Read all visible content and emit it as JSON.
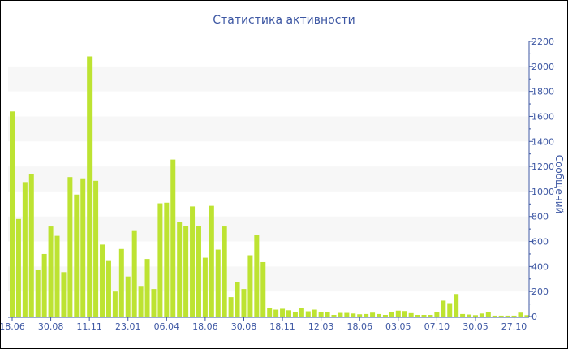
{
  "chart_data": {
    "type": "bar",
    "title": "Статистика активности",
    "ylabel": "Сообщений",
    "xlabel": "",
    "ylim": [
      0,
      2200
    ],
    "yticks": [
      0,
      200,
      400,
      600,
      800,
      1000,
      1200,
      1400,
      1600,
      1800,
      2000,
      2200
    ],
    "y_axis_side": "right",
    "grid": "alternating horizontal bands",
    "bar_color": "#bde332",
    "band_color": "#f7f7f7",
    "axis_color": "#3d57a3",
    "xtick_labels": [
      "18.06",
      "30.08",
      "11.11",
      "23.01",
      "06.04",
      "18.06",
      "30.08",
      "18.11",
      "12.03",
      "18.06",
      "03.05",
      "07.10",
      "30.05",
      "27.10"
    ],
    "xtick_every_n_bars": 6,
    "values": [
      1640,
      780,
      1075,
      1140,
      370,
      500,
      720,
      645,
      355,
      1115,
      975,
      1105,
      2080,
      1085,
      575,
      450,
      200,
      540,
      320,
      690,
      245,
      460,
      220,
      905,
      910,
      1255,
      755,
      725,
      880,
      725,
      470,
      885,
      535,
      720,
      155,
      275,
      220,
      490,
      650,
      435,
      65,
      55,
      62,
      50,
      38,
      67,
      42,
      55,
      33,
      33,
      13,
      29,
      29,
      24,
      18,
      20,
      31,
      20,
      13,
      33,
      47,
      44,
      27,
      13,
      13,
      13,
      36,
      127,
      107,
      180,
      20,
      16,
      11,
      24,
      38,
      7,
      7,
      7,
      7,
      31,
      11
    ]
  }
}
